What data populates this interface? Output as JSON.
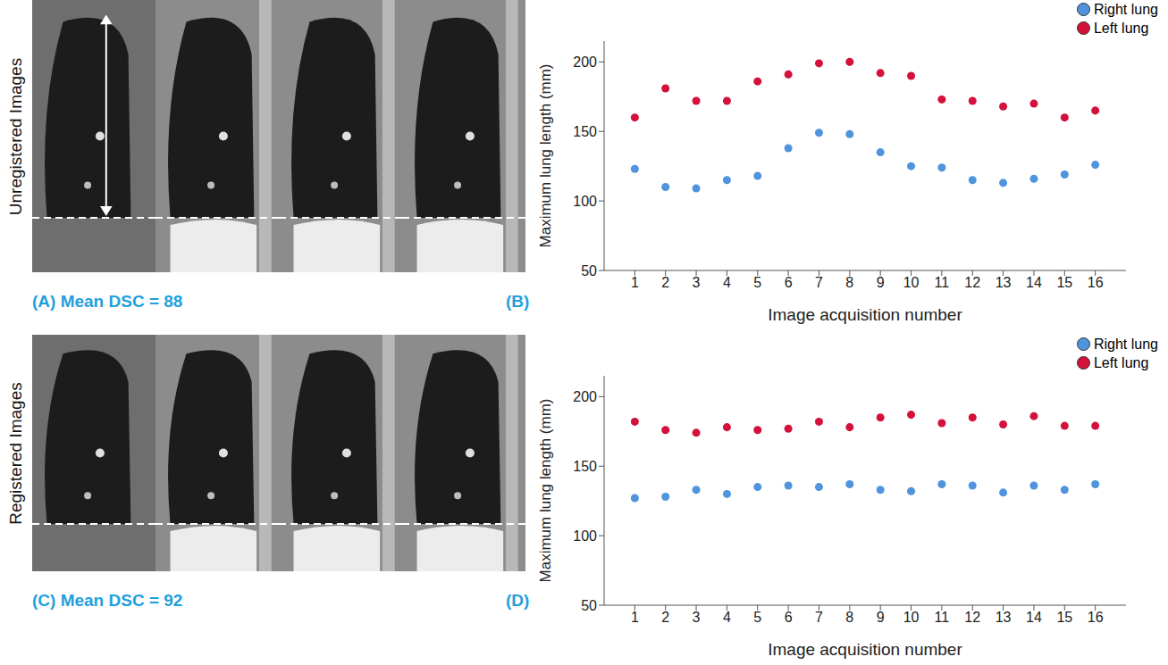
{
  "figure": {
    "rows": [
      {
        "image_label": "Unregistered Images",
        "caption": "(A) Mean DSC = 88"
      },
      {
        "image_label": "Registered Images",
        "caption": "(C) Mean DSC = 92"
      }
    ]
  },
  "chart_data": [
    {
      "type": "scatter",
      "label": "(B)",
      "x_label": "Image acquisition number",
      "y_label": "Maximum lung length (mm)",
      "x": [
        1,
        2,
        3,
        4,
        5,
        6,
        7,
        8,
        9,
        10,
        11,
        12,
        13,
        14,
        15,
        16
      ],
      "xlim": [
        0,
        17
      ],
      "xticks": [
        1,
        2,
        3,
        4,
        5,
        6,
        7,
        8,
        9,
        10,
        11,
        12,
        13,
        14,
        15,
        16
      ],
      "ylim": [
        50,
        215
      ],
      "yticks": [
        50,
        100,
        150,
        200
      ],
      "legend": "top-right",
      "series": [
        {
          "name": "Right lung",
          "color": "#4f94dc",
          "marker": "circle",
          "values": [
            123,
            110,
            109,
            115,
            118,
            138,
            149,
            148,
            135,
            125,
            124,
            115,
            113,
            116,
            119,
            126
          ]
        },
        {
          "name": "Left lung",
          "color": "#d4113a",
          "marker": "circle",
          "values": [
            160,
            181,
            172,
            172,
            186,
            191,
            199,
            200,
            192,
            190,
            173,
            172,
            168,
            170,
            160,
            165
          ]
        }
      ]
    },
    {
      "type": "scatter",
      "label": "(D)",
      "x_label": "Image acquisition number",
      "y_label": "Maximum lung length (mm)",
      "x": [
        1,
        2,
        3,
        4,
        5,
        6,
        7,
        8,
        9,
        10,
        11,
        12,
        13,
        14,
        15,
        16
      ],
      "xlim": [
        0,
        17
      ],
      "xticks": [
        1,
        2,
        3,
        4,
        5,
        6,
        7,
        8,
        9,
        10,
        11,
        12,
        13,
        14,
        15,
        16
      ],
      "ylim": [
        50,
        215
      ],
      "yticks": [
        50,
        100,
        150,
        200
      ],
      "legend": "top-right",
      "series": [
        {
          "name": "Right lung",
          "color": "#4f94dc",
          "marker": "circle",
          "values": [
            127,
            128,
            133,
            130,
            135,
            136,
            135,
            137,
            133,
            132,
            137,
            136,
            131,
            136,
            133,
            137
          ]
        },
        {
          "name": "Left lung",
          "color": "#d4113a",
          "marker": "circle",
          "values": [
            182,
            176,
            174,
            178,
            176,
            177,
            182,
            178,
            185,
            187,
            181,
            185,
            180,
            186,
            179,
            179
          ]
        }
      ]
    }
  ]
}
